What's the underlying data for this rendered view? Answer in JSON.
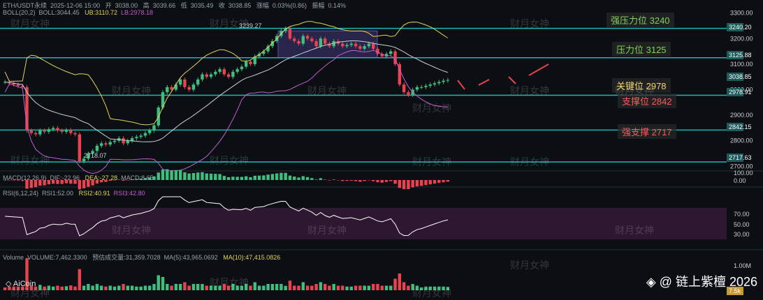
{
  "header": {
    "symbol": "ETH/USDT永续",
    "datetime": "2025-12-06 15:00",
    "open_label": "开",
    "open": "3038.00",
    "high_label": "高",
    "high": "3039.66",
    "low_label": "低",
    "low": "3035.49",
    "close_label": "收",
    "close": "3038.85",
    "change_label": "涨幅",
    "change": "0.03%(0.86)",
    "amp_label": "振幅",
    "amp": "0.14%"
  },
  "boll": {
    "label": "BOLL(20,2)",
    "mid": "BOLL:3044.45",
    "ub": "UB:3110.72",
    "lb": "LB:2978.18"
  },
  "macd": {
    "label": "MACD(12,26,9)",
    "dif": "DIF:-22.96",
    "dea": "DEA:-27.28",
    "macd": "MACD:8.65"
  },
  "rsi": {
    "label": "RSI(6,12,24)",
    "rsi1": "RSI1:52.00",
    "rsi2": "RSI2:40.91",
    "rsi3": "RSI3:42.80"
  },
  "volume": {
    "label": "Volume",
    "vol": "VOLUME:7,462.3300",
    "est": "预估成交量:31,359.7028",
    "ma5": "MA(5):43,965.0692",
    "ma10": "MA(10):47,415.0826"
  },
  "levels": [
    {
      "name": "强压力位 3240",
      "value": 3240,
      "color": "#7fd35a"
    },
    {
      "name": "压力位 3125",
      "value": 3125,
      "color": "#7fd35a"
    },
    {
      "name": "关键位 2978",
      "value": 2978,
      "color": "#f2d46a"
    },
    {
      "name": "支撑位 2842",
      "value": 2842,
      "color": "#ff5a5a"
    },
    {
      "name": "强支撑 2717",
      "value": 2717,
      "color": "#ff5a5a"
    }
  ],
  "price_tags": [
    "3240.20",
    "3125.88",
    "3038.85",
    "2978.91",
    "2842.15",
    "2717.63"
  ],
  "annotations": {
    "high": "3239.27",
    "low": "2718.07"
  },
  "y_ticks_main": [
    "3300.00",
    "3200.00",
    "3100.00",
    "3000.00",
    "2900.00",
    "2800.00",
    "2700.00"
  ],
  "y_ticks_macd": [
    "100.00",
    "0.00"
  ],
  "y_ticks_rsi": [
    "70.00",
    "50.00",
    "30.00"
  ],
  "y_ticks_vol": [
    "1.00M"
  ],
  "vol_tag": "7.5k",
  "watermark": "财月女神",
  "logo": "AiCoin",
  "brand": "链上紫檀 2026",
  "colors": {
    "up": "#3fbf7f",
    "down": "#e8434f",
    "level": "#22b4b4",
    "box": "#5b4fb4"
  },
  "chart_data": {
    "type": "candlestick",
    "ylim": [
      2690,
      3310
    ],
    "closes": [
      3030,
      3025,
      3020,
      3015,
      3010,
      2840,
      2830,
      2825,
      2840,
      2835,
      2845,
      2850,
      2840,
      2835,
      2842,
      2830,
      2825,
      2720,
      2730,
      2750,
      2760,
      2780,
      2790,
      2785,
      2795,
      2800,
      2810,
      2790,
      2800,
      2810,
      2815,
      2820,
      2830,
      2840,
      2860,
      2930,
      2990,
      3010,
      3000,
      3020,
      3040,
      3010,
      3000,
      3020,
      3040,
      3060,
      3050,
      3060,
      3070,
      3080,
      3060,
      3050,
      3070,
      3080,
      3090,
      3110,
      3100,
      3130,
      3140,
      3150,
      3170,
      3190,
      3210,
      3230,
      3239,
      3200,
      3190,
      3180,
      3210,
      3200,
      3190,
      3170,
      3200,
      3180,
      3170,
      3190,
      3180,
      3170,
      3175,
      3180,
      3170,
      3160,
      3170,
      3180,
      3160,
      3140,
      3130,
      3140,
      3150,
      3100,
      3020,
      2990,
      2980,
      3000,
      3010,
      3010,
      3015,
      3020,
      3025,
      3030,
      3035,
      3038
    ]
  }
}
